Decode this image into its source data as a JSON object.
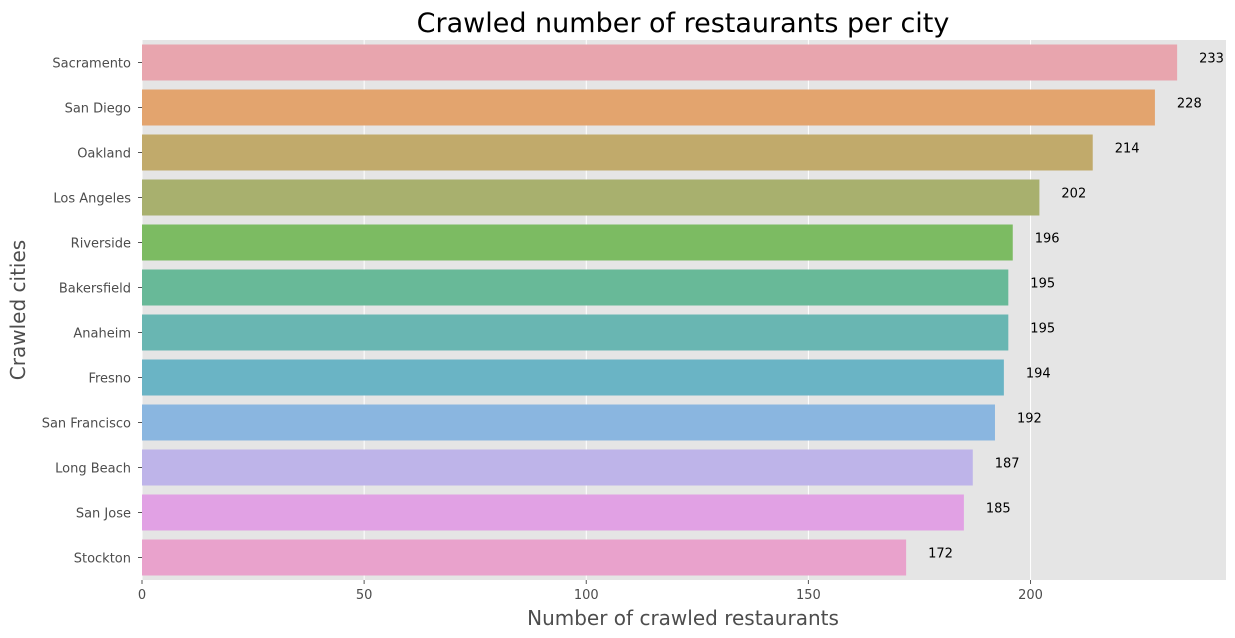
{
  "chart_data": {
    "type": "bar",
    "orientation": "horizontal",
    "title": "Crawled number of restaurants per city",
    "xlabel": "Number of crawled restaurants",
    "ylabel": "Crawled cities",
    "xlim": [
      0,
      244
    ],
    "xticks": [
      0,
      50,
      100,
      150,
      200
    ],
    "grid": true,
    "categories": [
      "Sacramento",
      "San Diego",
      "Oakland",
      "Los Angeles",
      "Riverside",
      "Bakersfield",
      "Anaheim",
      "Fresno",
      "San Francisco",
      "Long Beach",
      "San Jose",
      "Stockton"
    ],
    "values": [
      233,
      228,
      214,
      202,
      196,
      195,
      195,
      194,
      192,
      187,
      185,
      172
    ],
    "colors": [
      "#e8a5ae",
      "#e3a46e",
      "#c1aa6b",
      "#a8b06e",
      "#7cbb62",
      "#68b998",
      "#69b6b2",
      "#6ab4c5",
      "#8ab6e0",
      "#beb4e9",
      "#e1a1e4",
      "#e9a2cc"
    ],
    "background": "#e5e5e5"
  }
}
